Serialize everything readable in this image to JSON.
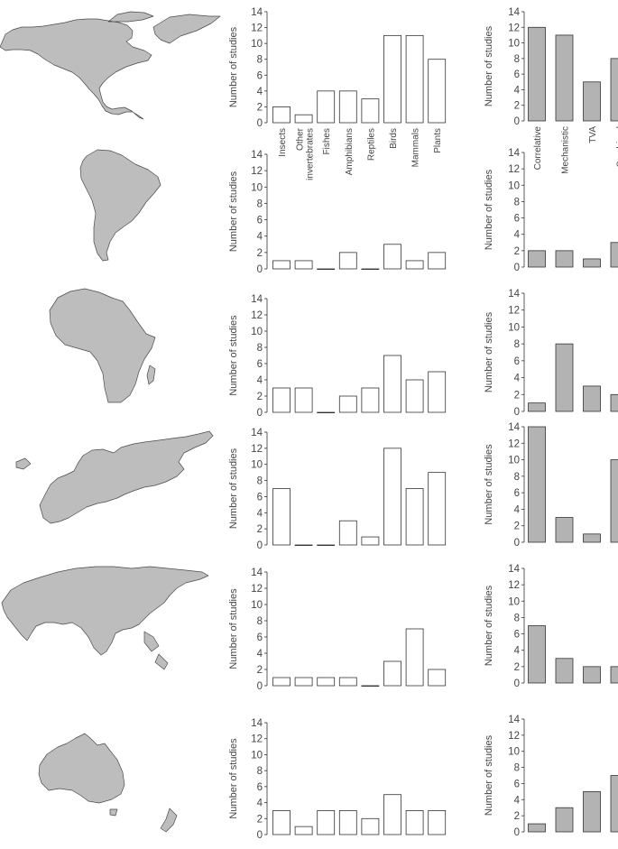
{
  "colors": {
    "map_fill": "#bdbdbd",
    "map_stroke": "#4a4a4a",
    "taxa_bar_fill": "#ffffff",
    "method_bar_fill": "#b3b3b3",
    "bar_stroke": "#333333",
    "axis": "#333333",
    "text": "#444444"
  },
  "chart_data": {
    "type": "bar",
    "ylabel": "Number of studies",
    "ylim": [
      0,
      14
    ],
    "yticks": [
      "0",
      "2",
      "4",
      "6",
      "8",
      "10",
      "12",
      "14"
    ],
    "taxa_categories": [
      "Insects",
      "Other invertebrates",
      "Fishes",
      "Amphibians",
      "Reptiles",
      "Birds",
      "Mammals",
      "Plants"
    ],
    "method_categories": [
      "Correlative",
      "Mechanistic",
      "TVA",
      "Combined"
    ],
    "regions": [
      {
        "map_icon": "north-america-map-icon",
        "taxa_values": [
          2,
          1,
          4,
          4,
          3,
          11,
          11,
          8
        ],
        "method_values": [
          12,
          11,
          5,
          8
        ]
      },
      {
        "map_icon": "south-america-map-icon",
        "taxa_values": [
          1,
          1,
          0,
          2,
          0,
          3,
          1,
          2
        ],
        "method_values": [
          2,
          2,
          1,
          3
        ]
      },
      {
        "map_icon": "africa-map-icon",
        "taxa_values": [
          3,
          3,
          0,
          2,
          3,
          7,
          4,
          5
        ],
        "method_values": [
          1,
          8,
          3,
          2
        ]
      },
      {
        "map_icon": "europe-map-icon",
        "taxa_values": [
          7,
          0,
          0,
          3,
          1,
          12,
          7,
          9
        ],
        "method_values": [
          14,
          3,
          1,
          10
        ]
      },
      {
        "map_icon": "asia-map-icon",
        "taxa_values": [
          1,
          1,
          1,
          1,
          0,
          3,
          7,
          2
        ],
        "method_values": [
          7,
          3,
          2,
          2
        ]
      },
      {
        "map_icon": "australia-map-icon",
        "taxa_values": [
          3,
          1,
          3,
          3,
          2,
          5,
          3,
          3
        ],
        "method_values": [
          1,
          3,
          5,
          7
        ]
      }
    ]
  }
}
